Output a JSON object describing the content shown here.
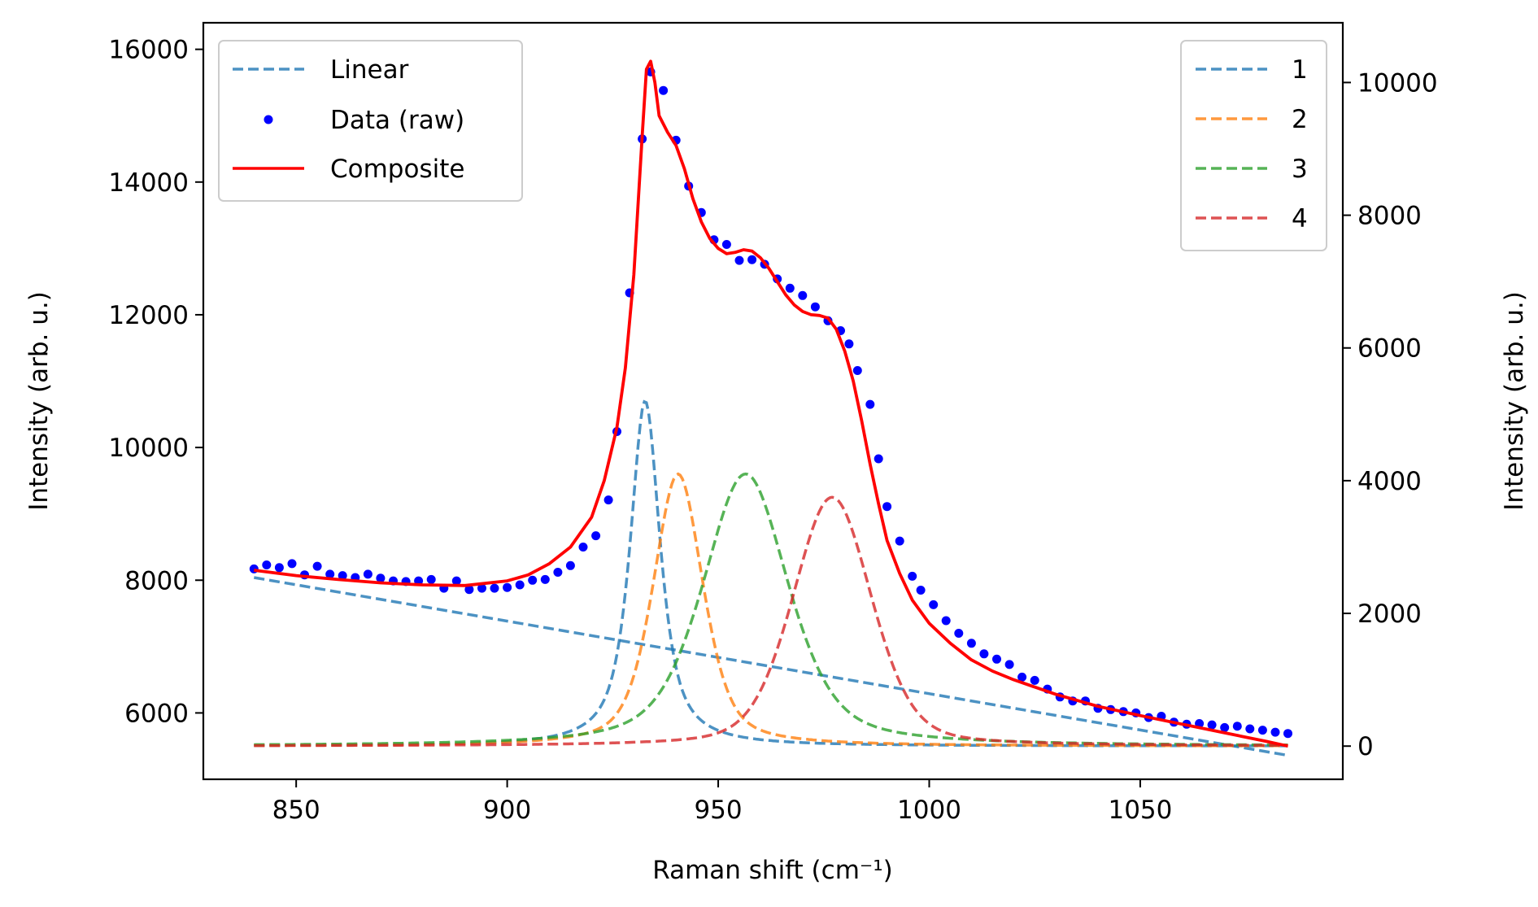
{
  "chart_data": {
    "type": "line",
    "xlabel": "Raman shift (cm⁻¹)",
    "ylabel_left": "Intensity (arb. u.)",
    "ylabel_right": "Intensity (arb. u.)",
    "xlim": [
      828,
      1098
    ],
    "ylim_left": [
      5000,
      16400
    ],
    "ylim_right": [
      -500,
      10900
    ],
    "x_ticks": [
      850,
      900,
      950,
      1000,
      1050
    ],
    "y_ticks_left": [
      6000,
      8000,
      10000,
      12000,
      14000,
      16000
    ],
    "y_ticks_right": [
      0,
      2000,
      4000,
      6000,
      8000,
      10000
    ],
    "grid": false,
    "legend_left": {
      "placement": "top-left",
      "entries": [
        "Linear",
        "Data (raw)",
        "Composite"
      ]
    },
    "legend_right": {
      "placement": "top-right",
      "entries": [
        "1",
        "2",
        "3",
        "4"
      ]
    },
    "colors": {
      "linear": "#1f77b4",
      "data": "#0000ff",
      "composite": "#ff0000",
      "peak1": "#1f77b4",
      "peak2": "#ff7f0e",
      "peak3": "#2ca02c",
      "peak4": "#d62728"
    },
    "x_range": [
      840,
      1085
    ],
    "linear": {
      "name": "Linear",
      "axis": "left",
      "style": "dashed",
      "points": [
        [
          840,
          8040
        ],
        [
          1085,
          5360
        ]
      ]
    },
    "peaks": [
      {
        "name": "1",
        "axis": "right",
        "style": "dashed",
        "center": 932.7,
        "height": 5200,
        "fwhm": 8.5,
        "eta": 0.8
      },
      {
        "name": "2",
        "axis": "right",
        "style": "dashed",
        "center": 940.5,
        "height": 4100,
        "fwhm": 14,
        "eta": 0.5
      },
      {
        "name": "3",
        "axis": "right",
        "style": "dashed",
        "center": 956.5,
        "height": 4100,
        "fwhm": 24,
        "eta": 0.5
      },
      {
        "name": "4",
        "axis": "right",
        "style": "dashed",
        "center": 977,
        "height": 3750,
        "fwhm": 22,
        "eta": 0.3
      }
    ],
    "composite": {
      "name": "Composite",
      "axis": "left",
      "style": "solid",
      "points": [
        [
          840,
          8150
        ],
        [
          850,
          8070
        ],
        [
          860,
          8010
        ],
        [
          870,
          7960
        ],
        [
          880,
          7930
        ],
        [
          890,
          7920
        ],
        [
          900,
          7990
        ],
        [
          905,
          8080
        ],
        [
          910,
          8250
        ],
        [
          915,
          8500
        ],
        [
          920,
          8950
        ],
        [
          923,
          9500
        ],
        [
          926,
          10300
        ],
        [
          928,
          11200
        ],
        [
          930,
          12600
        ],
        [
          932,
          14700
        ],
        [
          933,
          15700
        ],
        [
          934,
          15820
        ],
        [
          935,
          15500
        ],
        [
          936,
          15000
        ],
        [
          938,
          14750
        ],
        [
          940,
          14550
        ],
        [
          942,
          14200
        ],
        [
          944,
          13750
        ],
        [
          946,
          13400
        ],
        [
          948,
          13150
        ],
        [
          950,
          13000
        ],
        [
          952,
          12920
        ],
        [
          954,
          12940
        ],
        [
          956,
          12980
        ],
        [
          958,
          12960
        ],
        [
          960,
          12860
        ],
        [
          962,
          12700
        ],
        [
          964,
          12500
        ],
        [
          966,
          12300
        ],
        [
          968,
          12150
        ],
        [
          970,
          12050
        ],
        [
          972,
          12000
        ],
        [
          974,
          11990
        ],
        [
          976,
          11950
        ],
        [
          978,
          11780
        ],
        [
          980,
          11450
        ],
        [
          982,
          11000
        ],
        [
          984,
          10400
        ],
        [
          986,
          9750
        ],
        [
          988,
          9150
        ],
        [
          990,
          8600
        ],
        [
          993,
          8100
        ],
        [
          996,
          7700
        ],
        [
          1000,
          7350
        ],
        [
          1005,
          7050
        ],
        [
          1010,
          6800
        ],
        [
          1015,
          6630
        ],
        [
          1020,
          6500
        ],
        [
          1025,
          6390
        ],
        [
          1030,
          6280
        ],
        [
          1040,
          6100
        ],
        [
          1050,
          5960
        ],
        [
          1060,
          5830
        ],
        [
          1070,
          5700
        ],
        [
          1080,
          5570
        ],
        [
          1085,
          5500
        ]
      ]
    },
    "data_raw": {
      "name": "Data (raw)",
      "axis": "left",
      "points": [
        [
          840,
          8170
        ],
        [
          843,
          8230
        ],
        [
          846,
          8190
        ],
        [
          849,
          8250
        ],
        [
          852,
          8080
        ],
        [
          855,
          8210
        ],
        [
          858,
          8090
        ],
        [
          861,
          8070
        ],
        [
          864,
          8040
        ],
        [
          867,
          8090
        ],
        [
          870,
          8030
        ],
        [
          873,
          7990
        ],
        [
          876,
          7980
        ],
        [
          879,
          7990
        ],
        [
          882,
          8010
        ],
        [
          885,
          7880
        ],
        [
          888,
          7990
        ],
        [
          891,
          7860
        ],
        [
          894,
          7880
        ],
        [
          897,
          7880
        ],
        [
          900,
          7890
        ],
        [
          903,
          7930
        ],
        [
          906,
          8000
        ],
        [
          909,
          8010
        ],
        [
          912,
          8120
        ],
        [
          915,
          8220
        ],
        [
          918,
          8500
        ],
        [
          921,
          8670
        ],
        [
          924,
          9210
        ],
        [
          926,
          10240
        ],
        [
          929,
          12330
        ],
        [
          932,
          14650
        ],
        [
          934,
          15660
        ],
        [
          937,
          15380
        ],
        [
          940,
          14630
        ],
        [
          943,
          13940
        ],
        [
          946,
          13540
        ],
        [
          949,
          13130
        ],
        [
          952,
          13060
        ],
        [
          955,
          12820
        ],
        [
          958,
          12830
        ],
        [
          961,
          12760
        ],
        [
          964,
          12540
        ],
        [
          967,
          12400
        ],
        [
          970,
          12290
        ],
        [
          973,
          12120
        ],
        [
          976,
          11910
        ],
        [
          979,
          11760
        ],
        [
          981,
          11560
        ],
        [
          983,
          11160
        ],
        [
          986,
          10650
        ],
        [
          988,
          9830
        ],
        [
          990,
          9110
        ],
        [
          993,
          8590
        ],
        [
          996,
          8060
        ],
        [
          998,
          7850
        ],
        [
          1001,
          7630
        ],
        [
          1004,
          7390
        ],
        [
          1007,
          7200
        ],
        [
          1010,
          7050
        ],
        [
          1013,
          6890
        ],
        [
          1016,
          6810
        ],
        [
          1019,
          6730
        ],
        [
          1022,
          6540
        ],
        [
          1025,
          6490
        ],
        [
          1028,
          6360
        ],
        [
          1031,
          6240
        ],
        [
          1034,
          6180
        ],
        [
          1037,
          6180
        ],
        [
          1040,
          6070
        ],
        [
          1043,
          6050
        ],
        [
          1046,
          6020
        ],
        [
          1049,
          6000
        ],
        [
          1052,
          5930
        ],
        [
          1055,
          5950
        ],
        [
          1058,
          5860
        ],
        [
          1061,
          5830
        ],
        [
          1064,
          5840
        ],
        [
          1067,
          5820
        ],
        [
          1070,
          5780
        ],
        [
          1073,
          5800
        ],
        [
          1076,
          5760
        ],
        [
          1079,
          5740
        ],
        [
          1082,
          5710
        ],
        [
          1085,
          5690
        ]
      ]
    }
  }
}
